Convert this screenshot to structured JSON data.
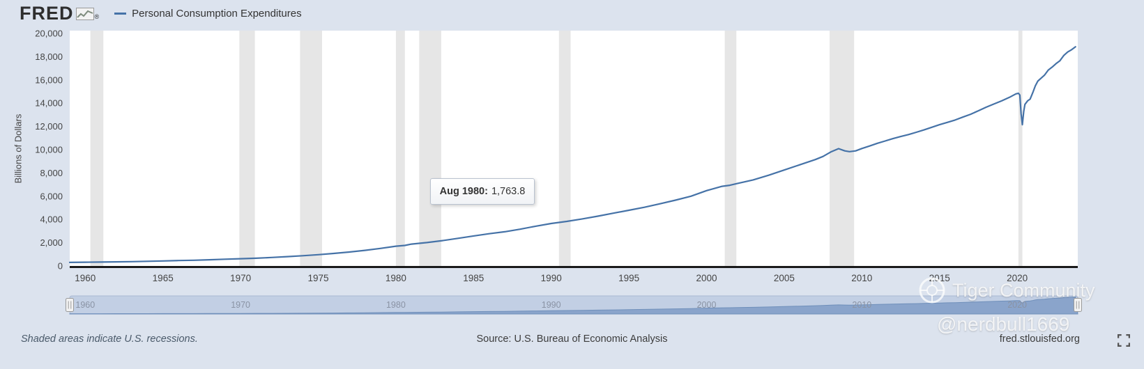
{
  "header": {
    "logo": "FRED",
    "registered": "®",
    "legend": {
      "label": "Personal Consumption Expenditures",
      "color": "#4572a7"
    }
  },
  "tooltip": {
    "date": "Aug 1980:",
    "value": "1,763.8"
  },
  "footer": {
    "recessions_note": "Shaded areas indicate U.S. recessions.",
    "source": "Source: U.S. Bureau of Economic Analysis",
    "site": "fred.stlouisfed.org"
  },
  "watermarks": {
    "community": "Tiger Community",
    "handle": "@nerdbull1669"
  },
  "chart_data": {
    "type": "line",
    "title": "Personal Consumption Expenditures",
    "ylabel": "Billions of Dollars",
    "xlabel": "",
    "ylim": [
      0,
      20000
    ],
    "xlim": [
      1959,
      2023.9
    ],
    "grid": false,
    "line_color": "#4572a7",
    "recession_color": "#e6e6e6",
    "background": "#dce3ee",
    "plot_background": "#ffffff",
    "y_ticks": [
      0,
      2000,
      4000,
      6000,
      8000,
      10000,
      12000,
      14000,
      16000,
      18000,
      20000
    ],
    "x_ticks": [
      1960,
      1965,
      1970,
      1975,
      1980,
      1985,
      1990,
      1995,
      2000,
      2005,
      2010,
      2015,
      2020
    ],
    "slider_ticks": [
      1960,
      1970,
      1980,
      1990,
      2000,
      2010,
      2020
    ],
    "annotation": {
      "label": "Aug 1980",
      "x": 1980.58,
      "y": 1763.8
    },
    "recessions": [
      [
        1960.33,
        1961.17
      ],
      [
        1969.92,
        1970.92
      ],
      [
        1973.83,
        1975.25
      ],
      [
        1980.0,
        1980.58
      ],
      [
        1981.5,
        1982.92
      ],
      [
        1990.5,
        1991.25
      ],
      [
        2001.17,
        2001.92
      ],
      [
        2007.92,
        2009.5
      ],
      [
        2020.08,
        2020.33
      ]
    ],
    "series": [
      {
        "name": "Personal Consumption Expenditures",
        "points": [
          [
            1959,
            306
          ],
          [
            1960,
            325
          ],
          [
            1961,
            335
          ],
          [
            1962,
            355
          ],
          [
            1963,
            374
          ],
          [
            1964,
            400
          ],
          [
            1965,
            430
          ],
          [
            1966,
            465
          ],
          [
            1967,
            490
          ],
          [
            1968,
            535
          ],
          [
            1969,
            580
          ],
          [
            1970,
            620
          ],
          [
            1971,
            665
          ],
          [
            1972,
            730
          ],
          [
            1973,
            805
          ],
          [
            1974,
            880
          ],
          [
            1975,
            970
          ],
          [
            1976,
            1080
          ],
          [
            1977,
            1200
          ],
          [
            1978,
            1340
          ],
          [
            1979,
            1510
          ],
          [
            1980,
            1700
          ],
          [
            1980.58,
            1763.8
          ],
          [
            1981,
            1880
          ],
          [
            1982,
            2010
          ],
          [
            1983,
            2180
          ],
          [
            1984,
            2380
          ],
          [
            1985,
            2580
          ],
          [
            1986,
            2770
          ],
          [
            1987,
            2940
          ],
          [
            1988,
            3160
          ],
          [
            1989,
            3420
          ],
          [
            1990,
            3650
          ],
          [
            1991,
            3830
          ],
          [
            1992,
            4050
          ],
          [
            1993,
            4280
          ],
          [
            1994,
            4540
          ],
          [
            1995,
            4790
          ],
          [
            1996,
            5050
          ],
          [
            1997,
            5350
          ],
          [
            1998,
            5660
          ],
          [
            1999,
            6000
          ],
          [
            2000,
            6480
          ],
          [
            2001,
            6850
          ],
          [
            2001.5,
            6940
          ],
          [
            2002,
            7100
          ],
          [
            2003,
            7400
          ],
          [
            2004,
            7800
          ],
          [
            2005,
            8250
          ],
          [
            2006,
            8700
          ],
          [
            2007,
            9150
          ],
          [
            2007.5,
            9420
          ],
          [
            2008,
            9800
          ],
          [
            2008.5,
            10090
          ],
          [
            2008.9,
            9900
          ],
          [
            2009.2,
            9830
          ],
          [
            2009.6,
            9900
          ],
          [
            2010,
            10100
          ],
          [
            2010.5,
            10320
          ],
          [
            2011,
            10550
          ],
          [
            2011.5,
            10750
          ],
          [
            2012,
            10950
          ],
          [
            2012.5,
            11130
          ],
          [
            2013,
            11300
          ],
          [
            2013.5,
            11500
          ],
          [
            2014,
            11700
          ],
          [
            2014.5,
            11930
          ],
          [
            2015,
            12150
          ],
          [
            2015.5,
            12350
          ],
          [
            2016,
            12550
          ],
          [
            2016.5,
            12800
          ],
          [
            2017,
            13050
          ],
          [
            2017.5,
            13350
          ],
          [
            2018,
            13650
          ],
          [
            2018.5,
            13930
          ],
          [
            2019,
            14200
          ],
          [
            2019.5,
            14500
          ],
          [
            2019.92,
            14800
          ],
          [
            2020.08,
            14850
          ],
          [
            2020.17,
            14700
          ],
          [
            2020.25,
            13100
          ],
          [
            2020.33,
            12150
          ],
          [
            2020.42,
            13300
          ],
          [
            2020.5,
            13900
          ],
          [
            2020.67,
            14200
          ],
          [
            2020.83,
            14350
          ],
          [
            2021,
            14900
          ],
          [
            2021.17,
            15500
          ],
          [
            2021.33,
            15900
          ],
          [
            2021.5,
            16100
          ],
          [
            2021.75,
            16400
          ],
          [
            2022,
            16850
          ],
          [
            2022.25,
            17100
          ],
          [
            2022.5,
            17400
          ],
          [
            2022.75,
            17650
          ],
          [
            2023,
            18100
          ],
          [
            2023.25,
            18400
          ],
          [
            2023.5,
            18600
          ],
          [
            2023.75,
            18850
          ]
        ]
      }
    ]
  }
}
